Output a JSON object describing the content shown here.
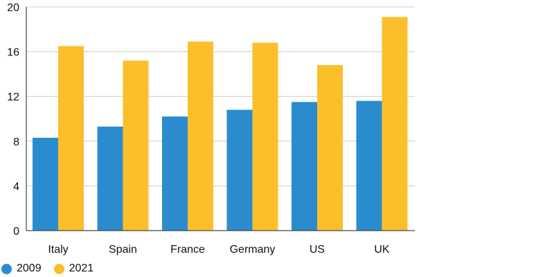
{
  "chart_data": {
    "type": "bar",
    "title": "",
    "xlabel": "",
    "ylabel": "",
    "categories": [
      "Italy",
      "Spain",
      "France",
      "Germany",
      "US",
      "UK"
    ],
    "series": [
      {
        "name": "2009",
        "color": "#2a8ccf",
        "values": [
          8.3,
          9.3,
          10.2,
          10.8,
          11.5,
          11.6
        ]
      },
      {
        "name": "2021",
        "color": "#fbbf2c",
        "values": [
          16.5,
          15.2,
          16.9,
          16.8,
          14.8,
          19.1
        ]
      }
    ],
    "ylim": [
      0,
      20
    ],
    "yticks": [
      0,
      4,
      8,
      12,
      16,
      20
    ],
    "grid": true,
    "legend_position": "bottom-left"
  }
}
